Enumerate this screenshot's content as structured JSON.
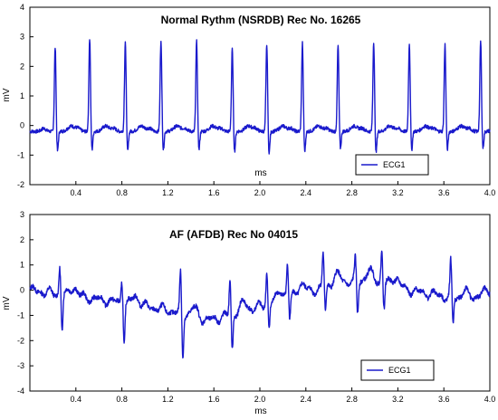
{
  "chart_data": [
    {
      "type": "line",
      "title": "Normal Rythm (NSRDB) Rec No. 16265",
      "xlabel": "ms",
      "ylabel": "mV",
      "xlim": [
        0,
        4.0
      ],
      "ylim": [
        -2,
        4
      ],
      "x_ticks": [
        "0.4",
        "0.8",
        "1.2",
        "1.6",
        "2.0",
        "2.4",
        "2.8",
        "3.2",
        "3.6",
        "4.0"
      ],
      "y_ticks": [
        "-2",
        "-1",
        "0",
        "1",
        "2",
        "3",
        "4"
      ],
      "grid": false,
      "legend_position": "bottom-right",
      "line_color": "#1a1acc",
      "series": [
        {
          "name": "ECG1",
          "beats": [
            {
              "t": 0.22,
              "peak": 2.65,
              "trough": -0.9
            },
            {
              "t": 0.52,
              "peak": 2.95,
              "trough": -0.85
            },
            {
              "t": 0.83,
              "peak": 2.85,
              "trough": -0.9
            },
            {
              "t": 1.14,
              "peak": 2.9,
              "trough": -0.85
            },
            {
              "t": 1.45,
              "peak": 2.85,
              "trough": -0.85
            },
            {
              "t": 1.76,
              "peak": 2.6,
              "trough": -0.9
            },
            {
              "t": 2.06,
              "peak": 2.75,
              "trough": -0.95
            },
            {
              "t": 2.37,
              "peak": 2.8,
              "trough": -0.9
            },
            {
              "t": 2.68,
              "peak": 2.7,
              "trough": -0.8
            },
            {
              "t": 2.99,
              "peak": 2.85,
              "trough": -0.95
            },
            {
              "t": 3.3,
              "peak": 2.8,
              "trough": -0.85
            },
            {
              "t": 3.61,
              "peak": 2.75,
              "trough": -0.85
            },
            {
              "t": 3.92,
              "peak": 2.85,
              "trough": -0.8
            }
          ],
          "baseline": -0.2
        }
      ]
    },
    {
      "type": "line",
      "title": "AF (AFDB) Rec No 04015",
      "xlabel": "ms",
      "ylabel": "mV",
      "xlim": [
        0,
        4.0
      ],
      "ylim": [
        -4,
        3
      ],
      "x_ticks": [
        "0.4",
        "0.8",
        "1.2",
        "1.6",
        "2.0",
        "2.4",
        "2.8",
        "3.2",
        "3.6",
        "4.0"
      ],
      "y_ticks": [
        "-4",
        "-3",
        "-2",
        "-1",
        "0",
        "1",
        "2",
        "3"
      ],
      "grid": false,
      "legend_position": "bottom-right",
      "line_color": "#1a1acc",
      "series": [
        {
          "name": "ECG1",
          "beats": [
            {
              "t": 0.26,
              "peak": 0.95,
              "trough": -1.55
            },
            {
              "t": 0.8,
              "peak": 0.45,
              "trough": -2.0
            },
            {
              "t": 1.31,
              "peak": 0.65,
              "trough": -2.65
            },
            {
              "t": 1.74,
              "peak": 0.35,
              "trough": -2.4
            },
            {
              "t": 2.06,
              "peak": 0.7,
              "trough": -1.45
            },
            {
              "t": 2.24,
              "peak": 1.0,
              "trough": -1.25
            },
            {
              "t": 2.55,
              "peak": 1.45,
              "trough": -0.85
            },
            {
              "t": 2.83,
              "peak": 1.2,
              "trough": -0.95
            },
            {
              "t": 3.06,
              "peak": 1.6,
              "trough": -0.7
            },
            {
              "t": 3.66,
              "peak": 1.1,
              "trough": -1.3
            }
          ],
          "baseline_points": [
            [
              0.0,
              0.0
            ],
            [
              0.5,
              -0.3
            ],
            [
              0.95,
              -0.6
            ],
            [
              1.2,
              -0.8
            ],
            [
              1.55,
              -1.2
            ],
            [
              1.9,
              -0.8
            ],
            [
              2.3,
              -0.2
            ],
            [
              2.7,
              0.3
            ],
            [
              3.0,
              0.4
            ],
            [
              3.3,
              0.0
            ],
            [
              3.8,
              -0.4
            ],
            [
              4.0,
              0.0
            ]
          ]
        }
      ]
    }
  ]
}
